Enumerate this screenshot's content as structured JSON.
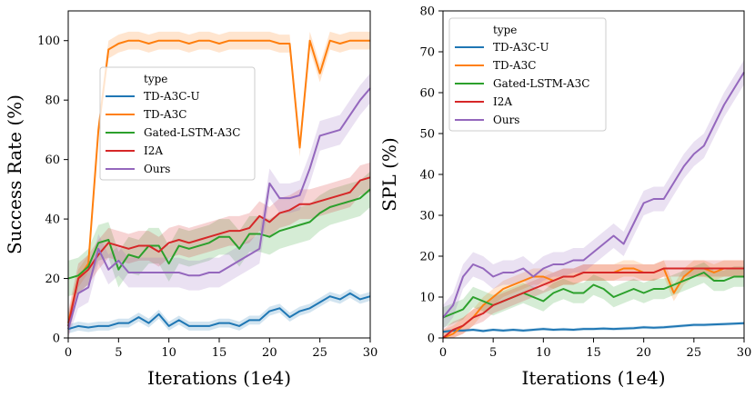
{
  "chart_data": [
    {
      "type": "line",
      "xlabel": "Iterations (1e4)",
      "ylabel": "Success Rate (%)",
      "xlim": [
        0,
        30
      ],
      "ylim": [
        0,
        110
      ],
      "xticks": [
        0,
        5,
        10,
        15,
        20,
        25,
        30
      ],
      "yticks": [
        0,
        20,
        40,
        60,
        80,
        100
      ],
      "legend": {
        "title": "type",
        "placement": "center-left"
      },
      "series": [
        {
          "name": "TD-A3C-U",
          "color": "#1f77b4",
          "x": [
            0,
            1,
            2,
            3,
            4,
            5,
            6,
            7,
            8,
            9,
            10,
            11,
            12,
            13,
            14,
            15,
            16,
            17,
            18,
            19,
            20,
            21,
            22,
            23,
            24,
            25,
            26,
            27,
            28,
            29,
            30
          ],
          "values": [
            3,
            4,
            3.5,
            4,
            4,
            5,
            5,
            7,
            5,
            8,
            4,
            6,
            4,
            4,
            4,
            5,
            5,
            4,
            6,
            6,
            9,
            10,
            7,
            9,
            10,
            12,
            14,
            13,
            15,
            13,
            14
          ],
          "band": 1.5
        },
        {
          "name": "TD-A3C",
          "color": "#ff7f0e",
          "x": [
            0,
            1,
            2,
            3,
            4,
            5,
            6,
            7,
            8,
            9,
            10,
            11,
            12,
            13,
            14,
            15,
            16,
            17,
            18,
            19,
            20,
            21,
            22,
            23,
            24,
            25,
            26,
            27,
            28,
            29,
            30
          ],
          "values": [
            5,
            20,
            25,
            70,
            97,
            99,
            100,
            100,
            99,
            100,
            100,
            100,
            99,
            100,
            100,
            99,
            100,
            100,
            100,
            100,
            100,
            99,
            99,
            64,
            100,
            89,
            100,
            99,
            100,
            100,
            100
          ],
          "band": 3
        },
        {
          "name": "Gated-LSTM-A3C",
          "color": "#2ca02c",
          "x": [
            0,
            1,
            2,
            3,
            4,
            5,
            6,
            7,
            8,
            9,
            10,
            11,
            12,
            13,
            14,
            15,
            16,
            17,
            18,
            19,
            20,
            21,
            22,
            23,
            24,
            25,
            26,
            27,
            28,
            29,
            30
          ],
          "values": [
            20,
            21,
            24,
            32,
            33,
            23,
            28,
            27,
            31,
            31,
            25,
            31,
            30,
            31,
            32,
            34,
            34,
            30,
            35,
            35,
            34,
            36,
            37,
            38,
            39,
            42,
            44,
            45,
            46,
            47,
            50
          ],
          "band": 6
        },
        {
          "name": "I2A",
          "color": "#d62728",
          "x": [
            0,
            1,
            2,
            3,
            4,
            5,
            6,
            7,
            8,
            9,
            10,
            11,
            12,
            13,
            14,
            15,
            16,
            17,
            18,
            19,
            20,
            21,
            22,
            23,
            24,
            25,
            26,
            27,
            28,
            29,
            30
          ],
          "values": [
            4,
            20,
            23,
            28,
            32,
            31,
            30,
            31,
            31,
            29,
            32,
            33,
            32,
            33,
            34,
            35,
            36,
            36,
            37,
            41,
            39,
            42,
            43,
            45,
            45,
            46,
            47,
            48,
            49,
            53,
            54
          ],
          "band": 5
        },
        {
          "name": "Ours",
          "color": "#9467bd",
          "x": [
            0,
            1,
            2,
            3,
            4,
            5,
            6,
            7,
            8,
            9,
            10,
            11,
            12,
            13,
            14,
            15,
            16,
            17,
            18,
            19,
            20,
            21,
            22,
            23,
            24,
            25,
            26,
            27,
            28,
            29,
            30
          ],
          "values": [
            3,
            15,
            17,
            30,
            23,
            26,
            22,
            22,
            22,
            22,
            22,
            22,
            21,
            21,
            22,
            22,
            24,
            26,
            28,
            30,
            52,
            47,
            47,
            48,
            57,
            68,
            69,
            70,
            75,
            80,
            84
          ],
          "band": 5
        }
      ]
    },
    {
      "type": "line",
      "xlabel": "Iterations (1e4)",
      "ylabel": "SPL (%)",
      "xlim": [
        0,
        30
      ],
      "ylim": [
        0,
        80
      ],
      "xticks": [
        0,
        5,
        10,
        15,
        20,
        25,
        30
      ],
      "yticks": [
        0,
        10,
        20,
        30,
        40,
        50,
        60,
        70,
        80
      ],
      "legend": {
        "title": "type",
        "placement": "top-left"
      },
      "series": [
        {
          "name": "TD-A3C-U",
          "color": "#1f77b4",
          "x": [
            0,
            1,
            2,
            3,
            4,
            5,
            6,
            7,
            8,
            9,
            10,
            11,
            12,
            13,
            14,
            15,
            16,
            17,
            18,
            19,
            20,
            21,
            22,
            23,
            24,
            25,
            26,
            27,
            28,
            29,
            30
          ],
          "values": [
            1.5,
            1.8,
            1.8,
            2,
            1.7,
            2,
            1.8,
            2,
            1.8,
            2,
            2.2,
            2,
            2.1,
            2,
            2.2,
            2.2,
            2.3,
            2.2,
            2.3,
            2.4,
            2.6,
            2.5,
            2.6,
            2.8,
            3,
            3.2,
            3.2,
            3.3,
            3.4,
            3.5,
            3.6
          ],
          "band": 0.4
        },
        {
          "name": "TD-A3C",
          "color": "#ff7f0e",
          "x": [
            0,
            1,
            2,
            3,
            4,
            5,
            6,
            7,
            8,
            9,
            10,
            11,
            12,
            13,
            14,
            15,
            16,
            17,
            18,
            19,
            20,
            21,
            22,
            23,
            24,
            25,
            26,
            27,
            28,
            29,
            30
          ],
          "values": [
            0,
            1,
            3,
            5,
            8,
            10,
            12,
            13,
            14,
            15,
            15,
            14,
            15,
            15,
            16,
            16,
            16,
            16,
            17,
            17,
            16,
            16,
            17,
            11,
            15,
            17,
            17,
            16,
            17,
            17,
            17
          ],
          "band": 2
        },
        {
          "name": "Gated-LSTM-A3C",
          "color": "#2ca02c",
          "x": [
            0,
            1,
            2,
            3,
            4,
            5,
            6,
            7,
            8,
            9,
            10,
            11,
            12,
            13,
            14,
            15,
            16,
            17,
            18,
            19,
            20,
            21,
            22,
            23,
            24,
            25,
            26,
            27,
            28,
            29,
            30
          ],
          "values": [
            5,
            6,
            7,
            10,
            9,
            8,
            9,
            10,
            11,
            10,
            9,
            11,
            12,
            11,
            11,
            13,
            12,
            10,
            11,
            12,
            11,
            12,
            12,
            13,
            14,
            15,
            16,
            14,
            14,
            15,
            15
          ],
          "band": 2.5
        },
        {
          "name": "I2A",
          "color": "#d62728",
          "x": [
            0,
            1,
            2,
            3,
            4,
            5,
            6,
            7,
            8,
            9,
            10,
            11,
            12,
            13,
            14,
            15,
            16,
            17,
            18,
            19,
            20,
            21,
            22,
            23,
            24,
            25,
            26,
            27,
            28,
            29,
            30
          ],
          "values": [
            0,
            2,
            3,
            5,
            6,
            8,
            9,
            10,
            11,
            12,
            13,
            14,
            15,
            15,
            16,
            16,
            16,
            16,
            16,
            16,
            16,
            16,
            17,
            17,
            17,
            17,
            17,
            17,
            17,
            17,
            17
          ],
          "band": 2
        },
        {
          "name": "Ours",
          "color": "#9467bd",
          "x": [
            0,
            1,
            2,
            3,
            4,
            5,
            6,
            7,
            8,
            9,
            10,
            11,
            12,
            13,
            14,
            15,
            16,
            17,
            18,
            19,
            20,
            21,
            22,
            23,
            24,
            25,
            26,
            27,
            28,
            29,
            30
          ],
          "values": [
            5,
            8,
            15,
            18,
            17,
            15,
            16,
            16,
            17,
            15,
            17,
            18,
            18,
            19,
            19,
            21,
            23,
            25,
            23,
            28,
            33,
            34,
            34,
            38,
            42,
            45,
            47,
            52,
            57,
            61,
            65
          ],
          "band": 3
        }
      ]
    }
  ]
}
